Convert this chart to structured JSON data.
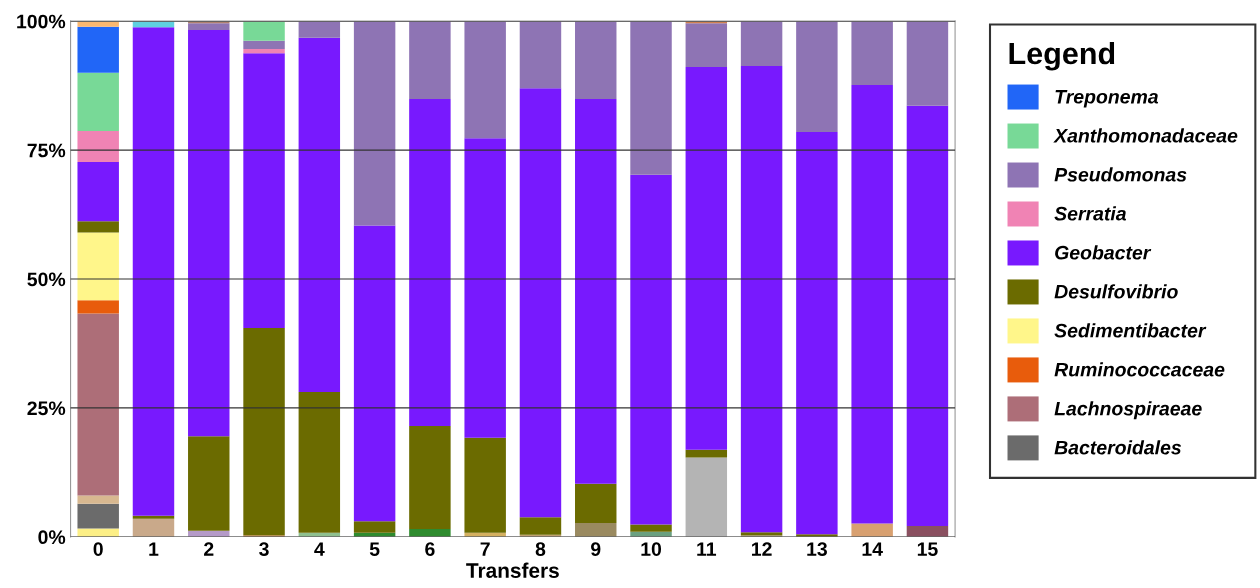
{
  "chart_data": {
    "type": "bar",
    "stacked": true,
    "xlabel": "Transfers",
    "legend_title": "Legend",
    "legend": "right",
    "grid": "y",
    "categories": [
      "0",
      "1",
      "2",
      "3",
      "4",
      "5",
      "6",
      "7",
      "8",
      "9",
      "10",
      "11",
      "12",
      "13",
      "14",
      "15"
    ],
    "ylim": [
      0,
      100
    ],
    "yticks": [
      {
        "value": 0,
        "label": "0%"
      },
      {
        "value": 25,
        "label": "25%"
      },
      {
        "value": 50,
        "label": "50%"
      },
      {
        "value": 75,
        "label": "75%"
      },
      {
        "value": 100,
        "label": "100%"
      }
    ],
    "series": [
      {
        "colors": [
          "#fcef86",
          "#c9a98a",
          "#b49ac8",
          "#c08040",
          "#8fc08f",
          "#2e8b2e",
          "#2e8b2e",
          "#d4b060",
          "#c0a070",
          "#9a8a60",
          "#6aa080",
          "#b4b4b4",
          "#a09060",
          "#a09060",
          "#d8a070",
          "#8a5060"
        ],
        "values": [
          1.6,
          3.5,
          1.2,
          0.3,
          0.8,
          0.8,
          1.5,
          0.8,
          0.4,
          2.7,
          1.0,
          15.4,
          0.3,
          null,
          2.6,
          2.1
        ]
      },
      {
        "name": "Bacteroidales",
        "color": "#6b6b6b",
        "values": [
          4.8,
          null,
          null,
          null,
          null,
          null,
          null,
          null,
          null,
          null,
          null,
          null,
          null,
          null,
          null,
          null
        ]
      },
      {
        "color": "#d8b890",
        "values": [
          1.6,
          null,
          null,
          null,
          null,
          null,
          null,
          null,
          null,
          null,
          null,
          null,
          null,
          null,
          null,
          null
        ]
      },
      {
        "name": "Lachnospiraeae",
        "color": "#ad6e78",
        "values": [
          35.3,
          null,
          null,
          null,
          null,
          null,
          null,
          null,
          null,
          null,
          null,
          null,
          null,
          null,
          null,
          null
        ]
      },
      {
        "name": "Ruminococcaceae",
        "color": "#e85c0c",
        "values": [
          2.6,
          null,
          null,
          null,
          null,
          null,
          null,
          null,
          null,
          null,
          null,
          null,
          null,
          null,
          null,
          null
        ]
      },
      {
        "name": "Sedimentibacter",
        "color": "#fff68a",
        "values": [
          13.1,
          null,
          null,
          null,
          null,
          null,
          null,
          null,
          null,
          null,
          null,
          null,
          null,
          null,
          null,
          null
        ]
      },
      {
        "name": "Desulfovibrio",
        "color": "#6b6b00",
        "values": [
          2.2,
          0.6,
          18.3,
          40.2,
          27.3,
          2.2,
          20.0,
          18.4,
          3.4,
          7.6,
          1.4,
          1.5,
          0.6,
          0.5,
          null,
          null
        ]
      },
      {
        "name": "Geobacter",
        "color": "#7819fe",
        "values": [
          11.5,
          94.7,
          78.8,
          53.3,
          68.7,
          57.4,
          63.4,
          58.1,
          83.2,
          74.6,
          67.8,
          74.2,
          90.4,
          78.0,
          85.0,
          81.5
        ]
      },
      {
        "name": "Serratia",
        "color": "#f083b4",
        "values": [
          6.0,
          null,
          null,
          0.8,
          null,
          null,
          null,
          null,
          null,
          null,
          null,
          null,
          null,
          null,
          null,
          null
        ]
      },
      {
        "name": "Pseudomonas",
        "color": "#8e74b4",
        "values": [
          null,
          null,
          1.3,
          1.6,
          3.2,
          39.6,
          15.1,
          22.7,
          13.0,
          15.1,
          29.8,
          8.5,
          8.7,
          21.5,
          12.4,
          16.4
        ]
      },
      {
        "name": "Xanthomonadaceae",
        "color": "#78d997",
        "values": [
          11.3,
          null,
          null,
          3.8,
          null,
          null,
          null,
          null,
          null,
          null,
          null,
          null,
          null,
          null,
          null,
          null
        ]
      },
      {
        "name": "Treponema",
        "color": "#2166f7",
        "values": [
          8.9,
          null,
          null,
          null,
          null,
          null,
          null,
          null,
          null,
          null,
          null,
          null,
          null,
          null,
          null,
          null
        ]
      },
      {
        "colors": [
          "#fbb870",
          "#5fd0e0",
          "#b08070",
          null,
          null,
          null,
          null,
          null,
          null,
          null,
          null,
          "#d08050",
          null,
          null,
          null,
          null
        ],
        "values": [
          1.1,
          1.2,
          0.4,
          null,
          null,
          null,
          null,
          null,
          null,
          null,
          null,
          0.4,
          null,
          null,
          null,
          null
        ]
      }
    ]
  }
}
